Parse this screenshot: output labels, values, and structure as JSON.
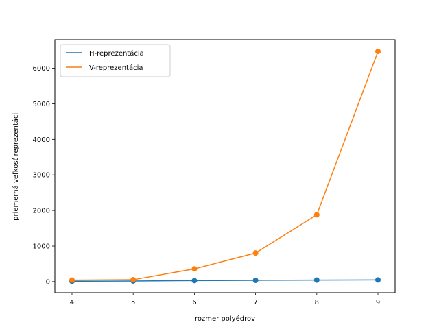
{
  "chart_data": {
    "type": "line",
    "xlabel": "rozmer polyédrov",
    "ylabel": "priemerná veľkosť reprezentácii",
    "x": [
      4,
      5,
      6,
      7,
      8,
      9
    ],
    "xlim": [
      3.72,
      9.28
    ],
    "ylim": [
      -310,
      6800
    ],
    "xticks": [
      4,
      5,
      6,
      7,
      8,
      9
    ],
    "yticks": [
      0,
      1000,
      2000,
      3000,
      4000,
      5000,
      6000
    ],
    "grid": false,
    "legend_position": "top-left",
    "series": [
      {
        "name": "H-reprezentácia",
        "color": "#1f77b4",
        "values": [
          12,
          18,
          30,
          38,
          45,
          48
        ]
      },
      {
        "name": "V-reprezentácia",
        "color": "#ff7f0e",
        "values": [
          45,
          55,
          360,
          805,
          1880,
          6470
        ]
      }
    ]
  }
}
